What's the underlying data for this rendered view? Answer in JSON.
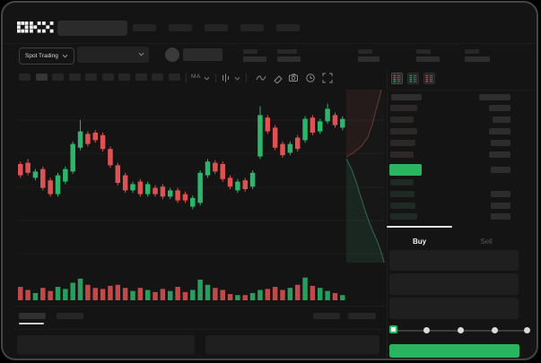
{
  "app": {
    "logo_text": "OKX"
  },
  "colors": {
    "up_green": "#2cb56b",
    "down_red": "#dd5353",
    "buy_button_green": "#2bb45f",
    "last_price_green": "#2bb45f"
  },
  "header": {
    "nav_placeholder_count": 5
  },
  "ticker_bar": {
    "market_selector_label": "Spot Trading",
    "stats": [
      {
        "label_w": 16,
        "value_w": 26
      },
      {
        "label_w": 22,
        "value_w": 26
      },
      {
        "label_w": 16,
        "value_w": 24
      },
      {
        "label_w": 16,
        "value_w": 26
      },
      {
        "label_w": 16,
        "value_w": 28
      }
    ]
  },
  "chart_toolbar": {
    "timeframe_count": 10,
    "active_timeframe_index": 1,
    "ma_label": "MA",
    "tool_icons": [
      "wave-icon",
      "eraser-icon",
      "camera-icon",
      "timer-icon",
      "fullscreen-icon"
    ]
  },
  "chart": {
    "chart_data": {
      "type": "candlestick",
      "ylim": [
        0,
        100
      ],
      "grid": true,
      "candles": [
        [
          50,
          52,
          39,
          41
        ],
        [
          51,
          54,
          41,
          43
        ],
        [
          39,
          46,
          37,
          44
        ],
        [
          46,
          48,
          29,
          31
        ],
        [
          37,
          39,
          24,
          26
        ],
        [
          26,
          43,
          24,
          41
        ],
        [
          36,
          48,
          34,
          46
        ],
        [
          44,
          68,
          42,
          66
        ],
        [
          63,
          85,
          61,
          76
        ],
        [
          74,
          76,
          64,
          66
        ],
        [
          75,
          77,
          67,
          69
        ],
        [
          73,
          75,
          60,
          62
        ],
        [
          62,
          64,
          47,
          49
        ],
        [
          49,
          51,
          33,
          35
        ],
        [
          41,
          43,
          27,
          29
        ],
        [
          29,
          36,
          27,
          34
        ],
        [
          36,
          38,
          24,
          26
        ],
        [
          26,
          36,
          24,
          34
        ],
        [
          31,
          33,
          24,
          26
        ],
        [
          32,
          34,
          22,
          24
        ],
        [
          24,
          31,
          22,
          29
        ],
        [
          29,
          31,
          19,
          21
        ],
        [
          26,
          28,
          19,
          21
        ],
        [
          16,
          25,
          14,
          23
        ],
        [
          19,
          45,
          17,
          43
        ],
        [
          41,
          54,
          39,
          52
        ],
        [
          51,
          53,
          42,
          44
        ],
        [
          50,
          52,
          36,
          38
        ],
        [
          39,
          41,
          30,
          32
        ],
        [
          29,
          38,
          27,
          36
        ],
        [
          37,
          39,
          28,
          30
        ],
        [
          32,
          45,
          30,
          43
        ],
        [
          56,
          96,
          54,
          89
        ],
        [
          87,
          89,
          74,
          76
        ],
        [
          79,
          81,
          61,
          63
        ],
        [
          66,
          68,
          55,
          57
        ],
        [
          59,
          68,
          57,
          66
        ],
        [
          71,
          73,
          60,
          62
        ],
        [
          69,
          88,
          67,
          86
        ],
        [
          87,
          89,
          73,
          75
        ],
        [
          76,
          86,
          74,
          84
        ],
        [
          84,
          98,
          82,
          94
        ],
        [
          89,
          91,
          79,
          81
        ],
        [
          79,
          88,
          77,
          86
        ]
      ],
      "volumes": [
        13,
        10,
        7,
        12,
        9,
        13,
        11,
        17,
        21,
        15,
        12,
        11,
        14,
        15,
        12,
        9,
        12,
        10,
        8,
        11,
        9,
        13,
        8,
        10,
        20,
        15,
        12,
        10,
        6,
        5,
        5,
        7,
        10,
        11,
        13,
        10,
        12,
        15,
        22,
        14,
        12,
        9,
        7,
        5
      ]
    }
  },
  "depth_chart": {
    "asks_line": [
      [
        409,
        1
      ],
      [
        407,
        10
      ],
      [
        403,
        24
      ],
      [
        399,
        40
      ],
      [
        394,
        54
      ],
      [
        387,
        64
      ],
      [
        377,
        72
      ],
      [
        370,
        76
      ]
    ],
    "bids_line": [
      [
        370,
        78
      ],
      [
        376,
        90
      ],
      [
        381,
        104
      ],
      [
        386,
        120
      ],
      [
        391,
        136
      ],
      [
        396,
        150
      ],
      [
        401,
        162
      ],
      [
        406,
        174
      ],
      [
        410,
        186
      ],
      [
        412,
        194
      ]
    ]
  },
  "orderbook": {
    "view_modes": [
      "book-combined-icon",
      "book-bids-icon",
      "book-asks-icon"
    ],
    "asks": [
      {
        "price_w": 30,
        "amount_w": 24
      },
      {
        "price_w": 26,
        "amount_w": 20
      },
      {
        "price_w": 30,
        "amount_w": 24
      },
      {
        "price_w": 28,
        "amount_w": 22
      },
      {
        "price_w": 26,
        "amount_w": 24
      }
    ],
    "last_price_w": 36,
    "bids": [
      {
        "price_w": 26,
        "amount_w": 0
      },
      {
        "price_w": 27,
        "amount_w": 22
      },
      {
        "price_w": 28,
        "amount_w": 22
      },
      {
        "price_w": 30,
        "amount_w": 22
      }
    ]
  },
  "trade_panel": {
    "tabs": [
      {
        "label": "Buy",
        "active": true
      },
      {
        "label": "Sell",
        "active": false
      }
    ],
    "amount_slider": {
      "positions": 5,
      "selected_index": 0
    }
  },
  "bottom_panel": {
    "tab_count": 2,
    "active_tab_index": 0,
    "right_link_count": 2
  }
}
